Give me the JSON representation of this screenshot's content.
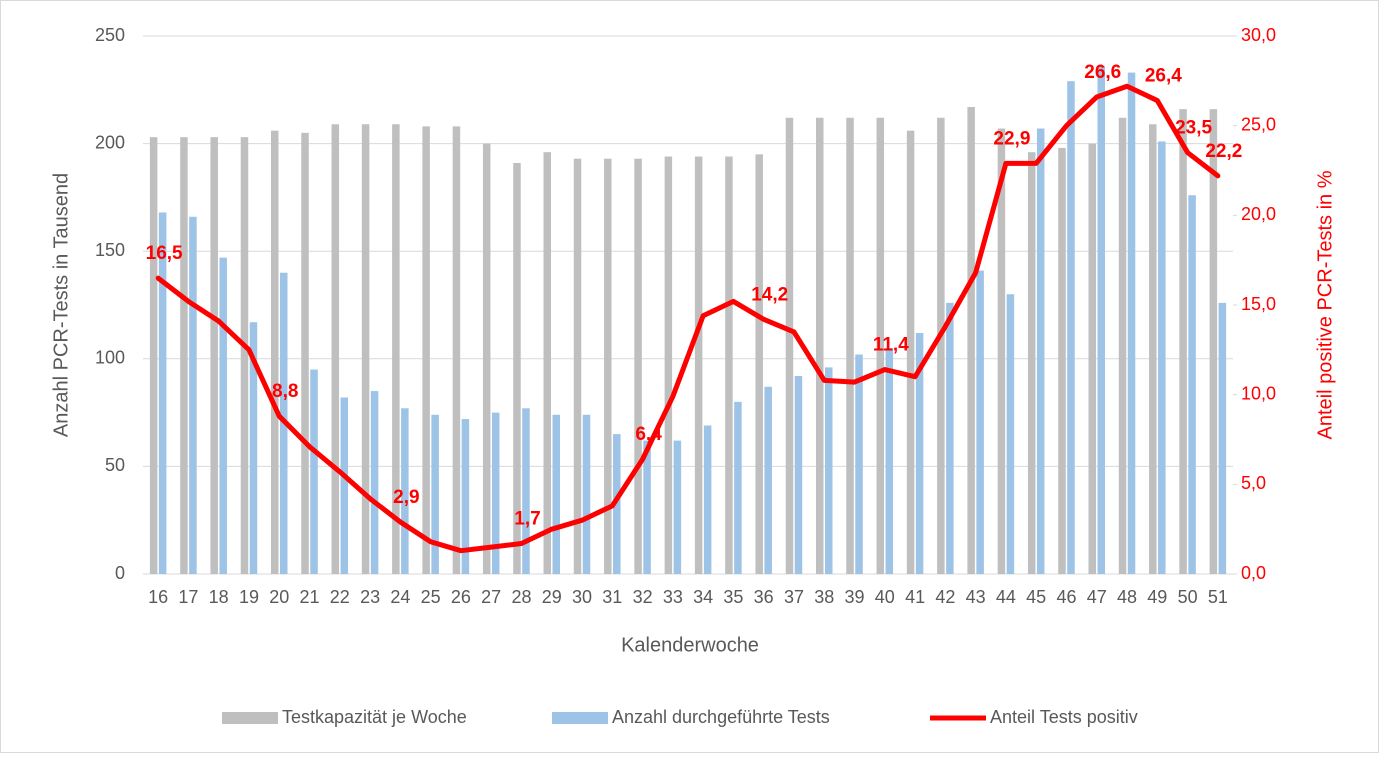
{
  "chart_data": {
    "type": "bar",
    "xlabel": "Kalenderwoche",
    "ylabel": "Anzahl PCR-Tests in Tausend",
    "y2label": "Anteil positive PCR-Tests in %",
    "categories": [
      "16",
      "17",
      "18",
      "19",
      "20",
      "21",
      "22",
      "23",
      "24",
      "25",
      "26",
      "27",
      "28",
      "29",
      "30",
      "31",
      "32",
      "33",
      "34",
      "35",
      "36",
      "37",
      "38",
      "39",
      "40",
      "41",
      "42",
      "43",
      "44",
      "45",
      "46",
      "47",
      "48",
      "49",
      "50",
      "51"
    ],
    "series": [
      {
        "name": "Testkapazität je Woche",
        "type": "bar",
        "color": "#bfbfbf",
        "values": [
          203,
          203,
          203,
          203,
          206,
          205,
          209,
          209,
          209,
          208,
          208,
          200,
          191,
          196,
          193,
          193,
          193,
          194,
          194,
          194,
          195,
          212,
          212,
          212,
          212,
          206,
          212,
          217,
          207,
          196,
          198,
          200,
          212,
          209,
          216,
          216
        ]
      },
      {
        "name": "Anzahl durchgeführte Tests",
        "type": "bar",
        "color": "#9dc3e6",
        "values": [
          168,
          166,
          147,
          117,
          140,
          95,
          82,
          85,
          77,
          74,
          72,
          75,
          77,
          74,
          74,
          65,
          62,
          62,
          69,
          80,
          87,
          92,
          96,
          102,
          105,
          112,
          126,
          141,
          130,
          207,
          229,
          236,
          233,
          201,
          176,
          126
        ]
      },
      {
        "name": "Anteil Tests positiv",
        "type": "line",
        "axis": "y2",
        "color": "#ff0000",
        "values": [
          16.5,
          15.2,
          14.1,
          12.5,
          8.8,
          7.1,
          5.7,
          4.2,
          2.9,
          1.8,
          1.3,
          1.5,
          1.7,
          2.5,
          3.0,
          3.8,
          6.4,
          9.9,
          14.4,
          15.2,
          14.2,
          13.5,
          10.8,
          10.7,
          11.4,
          11.0,
          13.8,
          16.8,
          22.9,
          22.9,
          25.0,
          26.6,
          27.2,
          26.4,
          23.5,
          22.2
        ],
        "value_labels": [
          "16,5",
          null,
          null,
          null,
          "8,8",
          null,
          null,
          null,
          "2,9",
          null,
          null,
          null,
          "1,7",
          null,
          null,
          null,
          "6,4",
          null,
          null,
          null,
          "14,2",
          null,
          null,
          null,
          "11,4",
          null,
          null,
          null,
          "22,9",
          null,
          null,
          "26,6",
          null,
          "26,4",
          "23,5",
          "22,2"
        ]
      }
    ],
    "ylim": [
      0,
      250
    ],
    "yticks": [
      0,
      50,
      100,
      150,
      200,
      250
    ],
    "y2lim": [
      0,
      30
    ],
    "y2ticks": [
      {
        "value": 0,
        "label": "0,0"
      },
      {
        "value": 5,
        "label": "5,0"
      },
      {
        "value": 10,
        "label": "10,0"
      },
      {
        "value": 15,
        "label": "15,0"
      },
      {
        "value": 20,
        "label": "20,0"
      },
      {
        "value": 25,
        "label": "25,0"
      },
      {
        "value": 30,
        "label": "30,0"
      }
    ],
    "grid": true,
    "legend": "bottom"
  }
}
